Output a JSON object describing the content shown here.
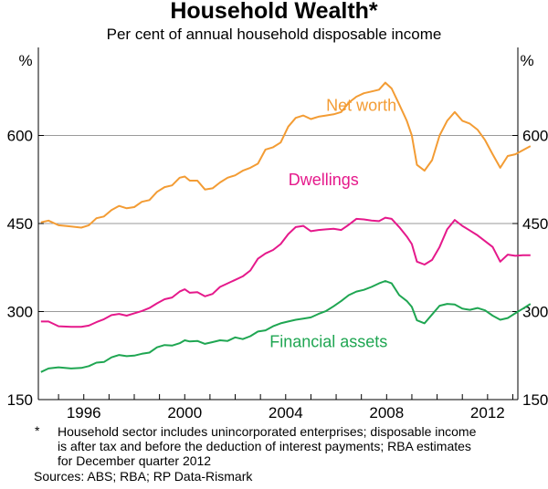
{
  "chart_data": {
    "type": "line",
    "title": "Household Wealth*",
    "subtitle": "Per cent of annual household disposable income",
    "y_unit_left": "%",
    "y_unit_right": "%",
    "ylim": [
      150,
      750
    ],
    "yticks": [
      150,
      300,
      450,
      600
    ],
    "xlim": [
      1994.2,
      2013.2
    ],
    "xticks": [
      1996,
      2000,
      2004,
      2008,
      2012
    ],
    "grid": true,
    "series": [
      {
        "name": "Net worth",
        "color": "#f39c34",
        "points": [
          [
            1994.3,
            452
          ],
          [
            1994.6,
            455
          ],
          [
            1995.0,
            447
          ],
          [
            1995.5,
            445
          ],
          [
            1995.9,
            443
          ],
          [
            1996.2,
            447
          ],
          [
            1996.5,
            459
          ],
          [
            1996.8,
            462
          ],
          [
            1997.1,
            473
          ],
          [
            1997.4,
            480
          ],
          [
            1997.7,
            476
          ],
          [
            1998.0,
            478
          ],
          [
            1998.3,
            487
          ],
          [
            1998.6,
            490
          ],
          [
            1998.9,
            504
          ],
          [
            1999.2,
            512
          ],
          [
            1999.5,
            515
          ],
          [
            1999.8,
            528
          ],
          [
            2000.0,
            530
          ],
          [
            2000.2,
            523
          ],
          [
            2000.5,
            523
          ],
          [
            2000.8,
            508
          ],
          [
            2001.1,
            510
          ],
          [
            2001.4,
            520
          ],
          [
            2001.7,
            528
          ],
          [
            2002.0,
            532
          ],
          [
            2002.3,
            540
          ],
          [
            2002.6,
            545
          ],
          [
            2002.9,
            552
          ],
          [
            2003.2,
            576
          ],
          [
            2003.5,
            580
          ],
          [
            2003.8,
            588
          ],
          [
            2004.1,
            615
          ],
          [
            2004.4,
            630
          ],
          [
            2004.7,
            634
          ],
          [
            2005.0,
            628
          ],
          [
            2005.3,
            632
          ],
          [
            2005.6,
            634
          ],
          [
            2005.9,
            636
          ],
          [
            2006.2,
            640
          ],
          [
            2006.5,
            656
          ],
          [
            2006.8,
            666
          ],
          [
            2007.1,
            672
          ],
          [
            2007.4,
            675
          ],
          [
            2007.7,
            678
          ],
          [
            2007.95,
            690
          ],
          [
            2008.2,
            680
          ],
          [
            2008.5,
            653
          ],
          [
            2008.8,
            625
          ],
          [
            2009.0,
            600
          ],
          [
            2009.2,
            550
          ],
          [
            2009.5,
            540
          ],
          [
            2009.8,
            558
          ],
          [
            2010.1,
            600
          ],
          [
            2010.4,
            625
          ],
          [
            2010.7,
            640
          ],
          [
            2011.0,
            625
          ],
          [
            2011.3,
            620
          ],
          [
            2011.6,
            610
          ],
          [
            2011.9,
            592
          ],
          [
            2012.2,
            568
          ],
          [
            2012.5,
            545
          ],
          [
            2012.8,
            565
          ],
          [
            2013.1,
            568
          ],
          [
            2013.4,
            575
          ],
          [
            2013.7,
            582
          ]
        ]
      },
      {
        "name": "Dwellings",
        "color": "#e5198b",
        "points": [
          [
            1994.3,
            283
          ],
          [
            1994.6,
            283
          ],
          [
            1995.0,
            275
          ],
          [
            1995.5,
            274
          ],
          [
            1995.9,
            274
          ],
          [
            1996.2,
            276
          ],
          [
            1996.5,
            282
          ],
          [
            1996.8,
            287
          ],
          [
            1997.1,
            294
          ],
          [
            1997.4,
            296
          ],
          [
            1997.7,
            293
          ],
          [
            1998.0,
            297
          ],
          [
            1998.3,
            301
          ],
          [
            1998.6,
            306
          ],
          [
            1998.9,
            314
          ],
          [
            1999.2,
            321
          ],
          [
            1999.5,
            324
          ],
          [
            1999.8,
            334
          ],
          [
            2000.0,
            338
          ],
          [
            2000.2,
            332
          ],
          [
            2000.5,
            333
          ],
          [
            2000.8,
            326
          ],
          [
            2001.1,
            330
          ],
          [
            2001.4,
            342
          ],
          [
            2001.7,
            348
          ],
          [
            2002.0,
            354
          ],
          [
            2002.3,
            360
          ],
          [
            2002.6,
            370
          ],
          [
            2002.9,
            390
          ],
          [
            2003.2,
            399
          ],
          [
            2003.5,
            405
          ],
          [
            2003.8,
            415
          ],
          [
            2004.1,
            432
          ],
          [
            2004.4,
            444
          ],
          [
            2004.7,
            446
          ],
          [
            2005.0,
            437
          ],
          [
            2005.3,
            439
          ],
          [
            2005.6,
            440
          ],
          [
            2005.9,
            441
          ],
          [
            2006.2,
            439
          ],
          [
            2006.5,
            448
          ],
          [
            2006.8,
            458
          ],
          [
            2007.1,
            457
          ],
          [
            2007.4,
            455
          ],
          [
            2007.7,
            454
          ],
          [
            2007.95,
            460
          ],
          [
            2008.2,
            458
          ],
          [
            2008.5,
            444
          ],
          [
            2008.8,
            428
          ],
          [
            2009.0,
            415
          ],
          [
            2009.2,
            385
          ],
          [
            2009.5,
            380
          ],
          [
            2009.8,
            388
          ],
          [
            2010.1,
            410
          ],
          [
            2010.4,
            440
          ],
          [
            2010.7,
            456
          ],
          [
            2011.0,
            446
          ],
          [
            2011.3,
            438
          ],
          [
            2011.6,
            430
          ],
          [
            2011.9,
            420
          ],
          [
            2012.2,
            410
          ],
          [
            2012.5,
            385
          ],
          [
            2012.8,
            397
          ],
          [
            2013.1,
            395
          ],
          [
            2013.4,
            396
          ],
          [
            2013.7,
            396
          ]
        ]
      },
      {
        "name": "Financial assets",
        "color": "#1fa652",
        "points": [
          [
            1994.3,
            197
          ],
          [
            1994.6,
            203
          ],
          [
            1995.0,
            205
          ],
          [
            1995.5,
            203
          ],
          [
            1995.9,
            204
          ],
          [
            1996.2,
            207
          ],
          [
            1996.5,
            213
          ],
          [
            1996.8,
            214
          ],
          [
            1997.1,
            222
          ],
          [
            1997.4,
            226
          ],
          [
            1997.7,
            224
          ],
          [
            1998.0,
            225
          ],
          [
            1998.3,
            228
          ],
          [
            1998.6,
            230
          ],
          [
            1998.9,
            239
          ],
          [
            1999.2,
            243
          ],
          [
            1999.5,
            242
          ],
          [
            1999.8,
            246
          ],
          [
            2000.0,
            251
          ],
          [
            2000.2,
            249
          ],
          [
            2000.5,
            250
          ],
          [
            2000.8,
            245
          ],
          [
            2001.1,
            248
          ],
          [
            2001.4,
            251
          ],
          [
            2001.7,
            250
          ],
          [
            2002.0,
            256
          ],
          [
            2002.3,
            253
          ],
          [
            2002.6,
            258
          ],
          [
            2002.9,
            266
          ],
          [
            2003.2,
            268
          ],
          [
            2003.5,
            275
          ],
          [
            2003.8,
            280
          ],
          [
            2004.1,
            283
          ],
          [
            2004.4,
            286
          ],
          [
            2004.7,
            288
          ],
          [
            2005.0,
            290
          ],
          [
            2005.3,
            296
          ],
          [
            2005.6,
            301
          ],
          [
            2005.9,
            309
          ],
          [
            2006.2,
            318
          ],
          [
            2006.5,
            328
          ],
          [
            2006.8,
            334
          ],
          [
            2007.1,
            337
          ],
          [
            2007.4,
            342
          ],
          [
            2007.7,
            348
          ],
          [
            2007.95,
            352
          ],
          [
            2008.2,
            348
          ],
          [
            2008.5,
            328
          ],
          [
            2008.8,
            318
          ],
          [
            2009.0,
            308
          ],
          [
            2009.2,
            285
          ],
          [
            2009.5,
            280
          ],
          [
            2009.8,
            295
          ],
          [
            2010.1,
            310
          ],
          [
            2010.4,
            313
          ],
          [
            2010.7,
            312
          ],
          [
            2011.0,
            305
          ],
          [
            2011.3,
            303
          ],
          [
            2011.6,
            306
          ],
          [
            2011.9,
            302
          ],
          [
            2012.2,
            293
          ],
          [
            2012.5,
            286
          ],
          [
            2012.8,
            289
          ],
          [
            2013.1,
            297
          ],
          [
            2013.4,
            305
          ],
          [
            2013.7,
            313
          ]
        ]
      }
    ],
    "annotations": [
      {
        "text": "Net worth",
        "series": "Net worth"
      },
      {
        "text": "Dwellings",
        "series": "Dwellings"
      },
      {
        "text": "Financial assets",
        "series": "Financial assets"
      }
    ]
  },
  "footnote": {
    "marker": "*",
    "line1": "Household sector includes unincorporated enterprises; disposable income",
    "line2": "is after tax and before the deduction of interest payments; RBA estimates",
    "line3": "for December quarter 2012"
  },
  "sources": "Sources: ABS; RBA; RP Data-Rismark"
}
